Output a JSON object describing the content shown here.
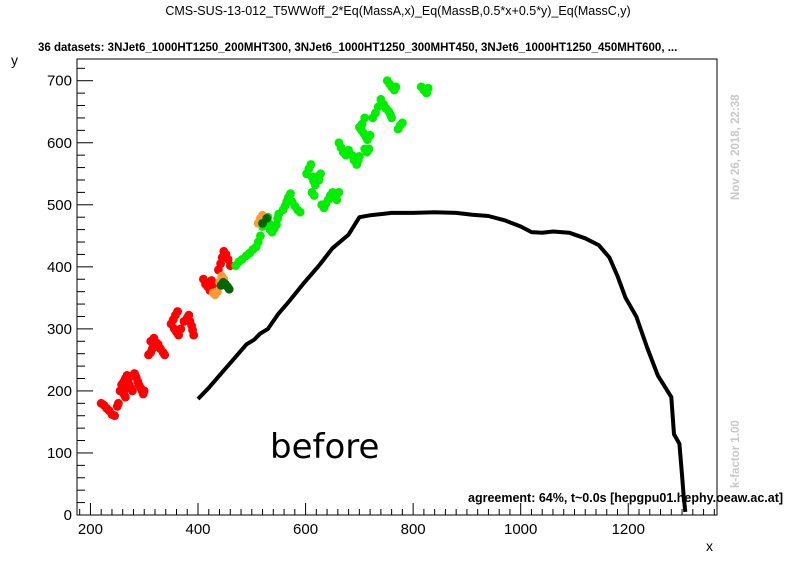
{
  "header": {
    "title": "CMS-SUS-13-012_T5WWoff_2*Eq(MassA,x)_Eq(MassB,0.5*x+0.5*y)_Eq(MassC,y)",
    "subtitle": "36 datasets: 3NJet6_1000HT1250_200MHT300, 3NJet6_1000HT1250_300MHT450, 3NJet6_1000HT1250_450MHT600,  ...",
    "timestamp": "Nov 26, 2018, 22:38",
    "kfactor": "k-factor 1.00",
    "annotation": "before",
    "agreement": "agreement: 64%, t~0.0s [hepgpu01.hephy.oeaw.ac.at]"
  },
  "chart_data": {
    "type": "scatter",
    "xlabel": "x",
    "ylabel": "y",
    "xlim": [
      175,
      1365
    ],
    "ylim": [
      0,
      735
    ],
    "xticks": [
      200,
      400,
      600,
      800,
      1000,
      1200
    ],
    "yticks": [
      0,
      100,
      200,
      300,
      400,
      500,
      600,
      700
    ],
    "colors": {
      "excluded": "#ff0000",
      "allowed": "#00ee00",
      "borderline": "#ff9933",
      "dark": "#006600",
      "line": "#000000"
    },
    "series": [
      {
        "color": "#ff0000",
        "points": [
          [
            220,
            180
          ],
          [
            225,
            177
          ],
          [
            230,
            172
          ],
          [
            235,
            168
          ],
          [
            240,
            162
          ],
          [
            245,
            160
          ],
          [
            250,
            175
          ],
          [
            252,
            180
          ],
          [
            255,
            200
          ],
          [
            258,
            210
          ],
          [
            262,
            215
          ],
          [
            265,
            220
          ],
          [
            268,
            225
          ],
          [
            270,
            218
          ],
          [
            272,
            210
          ],
          [
            275,
            205
          ],
          [
            278,
            200
          ],
          [
            262,
            195
          ],
          [
            265,
            190
          ],
          [
            268,
            205
          ],
          [
            282,
            228
          ],
          [
            285,
            222
          ],
          [
            288,
            215
          ],
          [
            290,
            210
          ],
          [
            293,
            205
          ],
          [
            296,
            200
          ],
          [
            298,
            195
          ],
          [
            300,
            200
          ],
          [
            308,
            258
          ],
          [
            312,
            262
          ],
          [
            315,
            268
          ],
          [
            318,
            272
          ],
          [
            322,
            278
          ],
          [
            326,
            275
          ],
          [
            330,
            268
          ],
          [
            335,
            262
          ],
          [
            338,
            258
          ],
          [
            312,
            280
          ],
          [
            318,
            285
          ],
          [
            350,
            308
          ],
          [
            354,
            315
          ],
          [
            358,
            322
          ],
          [
            362,
            328
          ],
          [
            356,
            300
          ],
          [
            360,
            295
          ],
          [
            364,
            290
          ],
          [
            368,
            300
          ],
          [
            374,
            312
          ],
          [
            380,
            318
          ],
          [
            383,
            322
          ],
          [
            385,
            312
          ],
          [
            388,
            305
          ],
          [
            390,
            298
          ],
          [
            392,
            290
          ],
          [
            410,
            380
          ],
          [
            414,
            372
          ],
          [
            418,
            368
          ],
          [
            422,
            362
          ],
          [
            425,
            378
          ],
          [
            428,
            372
          ],
          [
            438,
            395
          ],
          [
            442,
            405
          ],
          [
            445,
            415
          ],
          [
            448,
            425
          ],
          [
            452,
            420
          ],
          [
            456,
            412
          ],
          [
            460,
            402
          ]
        ]
      },
      {
        "color": "#00ee00",
        "points": [
          [
            470,
            402
          ],
          [
            476,
            408
          ],
          [
            482,
            412
          ],
          [
            490,
            418
          ],
          [
            496,
            422
          ],
          [
            502,
            428
          ],
          [
            508,
            432
          ],
          [
            512,
            440
          ],
          [
            516,
            450
          ],
          [
            520,
            465
          ],
          [
            525,
            475
          ],
          [
            530,
            480
          ],
          [
            532,
            470
          ],
          [
            534,
            460
          ],
          [
            538,
            456
          ],
          [
            542,
            462
          ],
          [
            546,
            468
          ],
          [
            548,
            478
          ],
          [
            550,
            485
          ],
          [
            558,
            492
          ],
          [
            562,
            498
          ],
          [
            565,
            505
          ],
          [
            568,
            512
          ],
          [
            572,
            518
          ],
          [
            575,
            505
          ],
          [
            580,
            498
          ],
          [
            585,
            492
          ],
          [
            590,
            488
          ],
          [
            602,
            550
          ],
          [
            606,
            558
          ],
          [
            610,
            565
          ],
          [
            612,
            545
          ],
          [
            615,
            538
          ],
          [
            618,
            532
          ],
          [
            620,
            545
          ],
          [
            625,
            540
          ],
          [
            628,
            550
          ],
          [
            612,
            520
          ],
          [
            616,
            515
          ],
          [
            630,
            500
          ],
          [
            634,
            495
          ],
          [
            638,
            502
          ],
          [
            642,
            508
          ],
          [
            646,
            515
          ],
          [
            650,
            520
          ],
          [
            654,
            512
          ],
          [
            658,
            508
          ],
          [
            662,
            520
          ],
          [
            662,
            600
          ],
          [
            666,
            592
          ],
          [
            670,
            585
          ],
          [
            675,
            580
          ],
          [
            680,
            588
          ],
          [
            686,
            580
          ],
          [
            690,
            572
          ],
          [
            695,
            565
          ],
          [
            698,
            572
          ],
          [
            700,
            578
          ],
          [
            710,
            590
          ],
          [
            714,
            585
          ],
          [
            718,
            590
          ],
          [
            704,
            620
          ],
          [
            708,
            615
          ],
          [
            712,
            610
          ],
          [
            715,
            605
          ],
          [
            720,
            612
          ],
          [
            725,
            640
          ],
          [
            730,
            648
          ],
          [
            735,
            658
          ],
          [
            740,
            670
          ],
          [
            745,
            662
          ],
          [
            750,
            655
          ],
          [
            755,
            650
          ],
          [
            758,
            645
          ],
          [
            760,
            640
          ],
          [
            710,
            640
          ],
          [
            705,
            630
          ],
          [
            700,
            625
          ],
          [
            752,
            700
          ],
          [
            756,
            695
          ],
          [
            760,
            690
          ],
          [
            765,
            685
          ],
          [
            768,
            690
          ],
          [
            772,
            622
          ],
          [
            776,
            628
          ],
          [
            780,
            632
          ],
          [
            815,
            690
          ],
          [
            820,
            685
          ],
          [
            825,
            680
          ],
          [
            828,
            688
          ]
        ]
      },
      {
        "color": "#ff9933",
        "points": [
          [
            428,
            358
          ],
          [
            432,
            355
          ],
          [
            436,
            360
          ],
          [
            440,
            375
          ],
          [
            444,
            385
          ],
          [
            448,
            380
          ],
          [
            512,
            470
          ],
          [
            516,
            478
          ],
          [
            520,
            483
          ],
          [
            524,
            478
          ]
        ]
      },
      {
        "color": "#006600",
        "points": [
          [
            443,
            370
          ],
          [
            447,
            375
          ],
          [
            451,
            372
          ],
          [
            455,
            368
          ],
          [
            458,
            364
          ],
          [
            520,
            470
          ],
          [
            528,
            478
          ]
        ]
      }
    ],
    "line": [
      [
        400,
        187
      ],
      [
        420,
        205
      ],
      [
        445,
        230
      ],
      [
        470,
        255
      ],
      [
        490,
        275
      ],
      [
        505,
        283
      ],
      [
        515,
        292
      ],
      [
        530,
        300
      ],
      [
        550,
        325
      ],
      [
        570,
        345
      ],
      [
        595,
        372
      ],
      [
        625,
        402
      ],
      [
        650,
        430
      ],
      [
        680,
        452
      ],
      [
        700,
        480
      ],
      [
        720,
        483
      ],
      [
        760,
        487
      ],
      [
        800,
        487
      ],
      [
        840,
        488
      ],
      [
        880,
        487
      ],
      [
        910,
        484
      ],
      [
        940,
        482
      ],
      [
        970,
        475
      ],
      [
        1000,
        465
      ],
      [
        1020,
        456
      ],
      [
        1040,
        455
      ],
      [
        1060,
        457
      ],
      [
        1090,
        455
      ],
      [
        1120,
        446
      ],
      [
        1145,
        435
      ],
      [
        1165,
        415
      ],
      [
        1180,
        385
      ],
      [
        1195,
        350
      ],
      [
        1215,
        320
      ],
      [
        1235,
        270
      ],
      [
        1255,
        225
      ],
      [
        1280,
        190
      ],
      [
        1285,
        130
      ],
      [
        1295,
        115
      ],
      [
        1300,
        65
      ],
      [
        1303,
        30
      ],
      [
        1306,
        5
      ]
    ]
  }
}
